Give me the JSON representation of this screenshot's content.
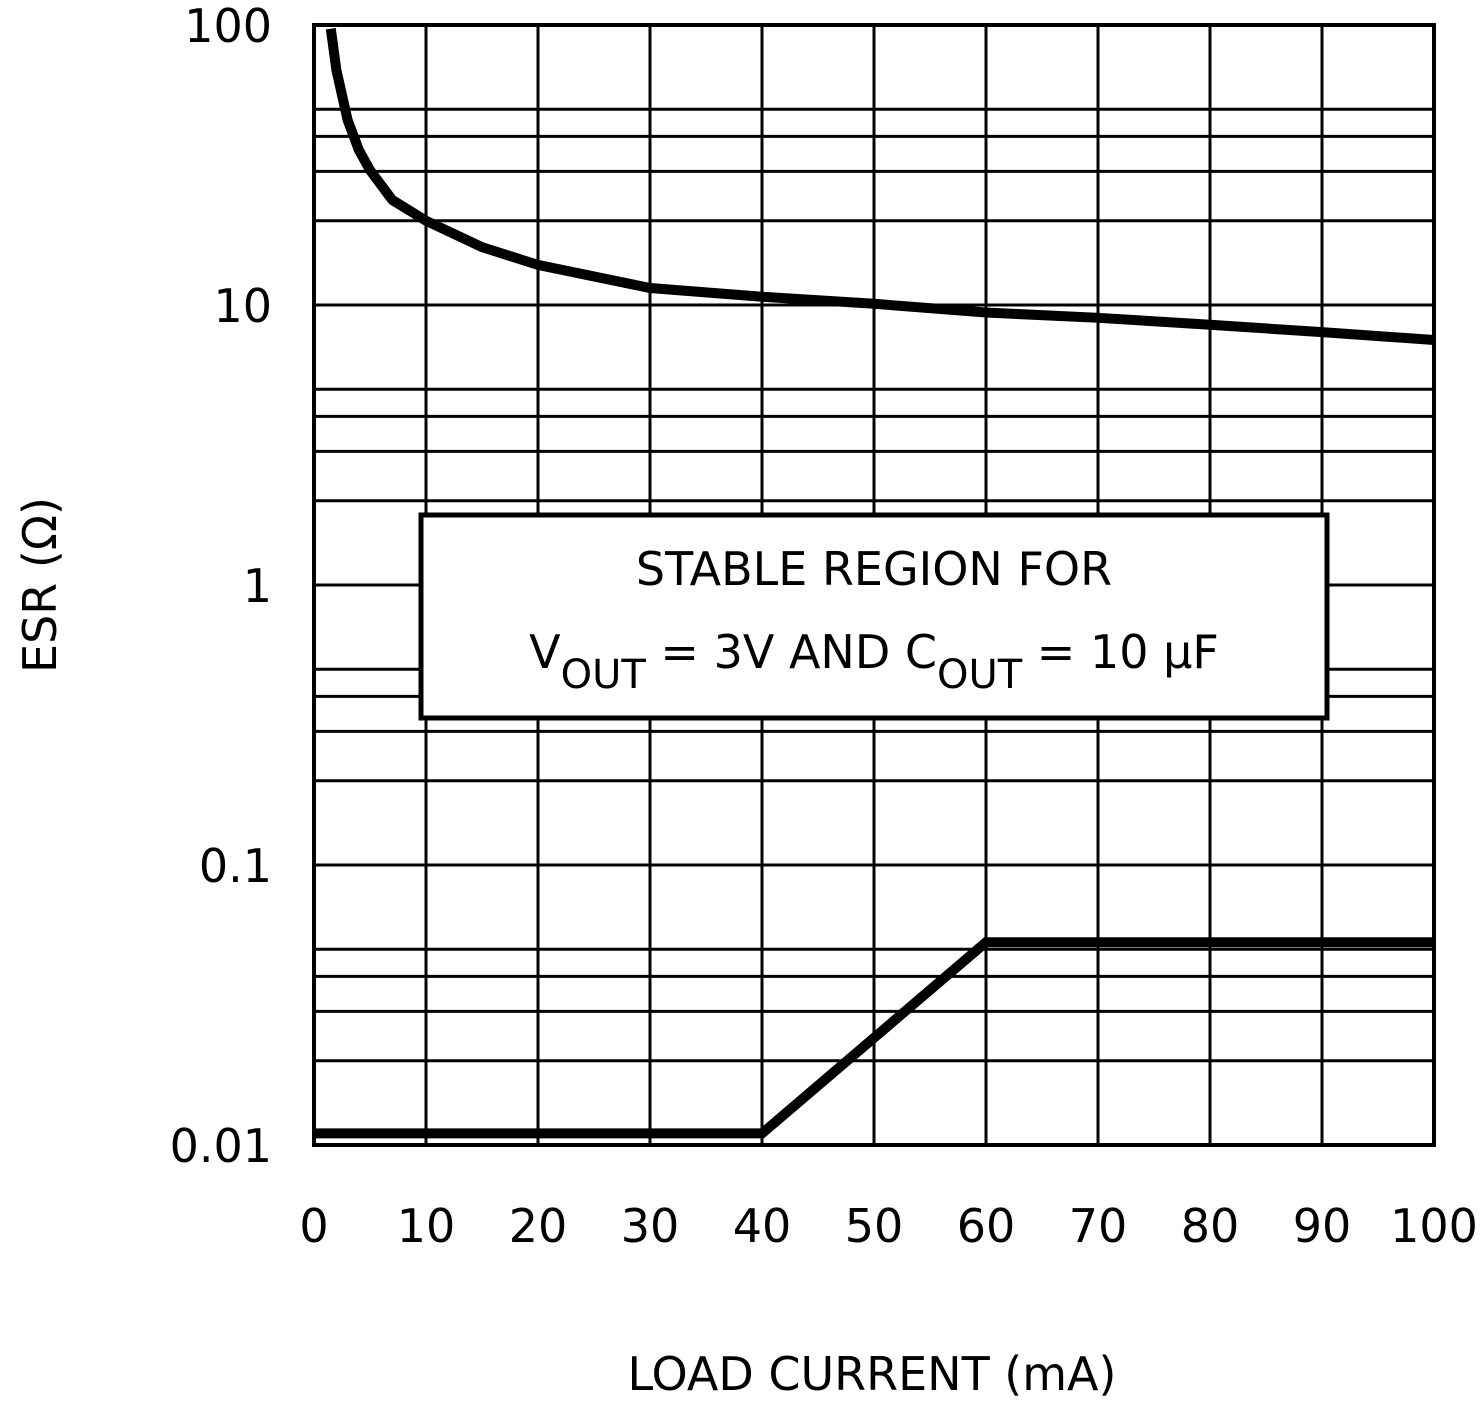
{
  "chart_data": {
    "type": "line",
    "xlabel": "LOAD CURRENT (mA)",
    "ylabel": "ESR (Ω)",
    "xlim": [
      0,
      100
    ],
    "xticks": [
      0,
      10,
      20,
      30,
      40,
      50,
      60,
      70,
      80,
      90,
      100
    ],
    "ylim": [
      0.01,
      100
    ],
    "yticks": [
      0.01,
      0.1,
      1,
      10,
      100
    ],
    "yscale": "log",
    "yminor": [
      0.02,
      0.03,
      0.04,
      0.05,
      0.2,
      0.3,
      0.4,
      0.5,
      2,
      3,
      4,
      5,
      20,
      30,
      40,
      50
    ],
    "grid": true,
    "series": [
      {
        "color": "#000000",
        "x": [
          1.5,
          2,
          3,
          4,
          5,
          7,
          10,
          15,
          20,
          30,
          40,
          50,
          60,
          70,
          80,
          90,
          100
        ],
        "values": [
          97,
          69,
          45.8,
          35.8,
          30.3,
          23.7,
          20,
          16.1,
          13.9,
          11.5,
          10.7,
          10.1,
          9.4,
          9.0,
          8.5,
          8.0,
          7.5
        ]
      },
      {
        "color": "#000000",
        "x": [
          0,
          40,
          60,
          100
        ],
        "values": [
          0.011,
          0.011,
          0.053,
          0.053
        ]
      }
    ],
    "annotation": {
      "line1": "STABLE REGION FOR",
      "line2": [
        "V",
        "OUT",
        " = 3V AND C",
        "OUT",
        " = 10 μF"
      ]
    }
  }
}
